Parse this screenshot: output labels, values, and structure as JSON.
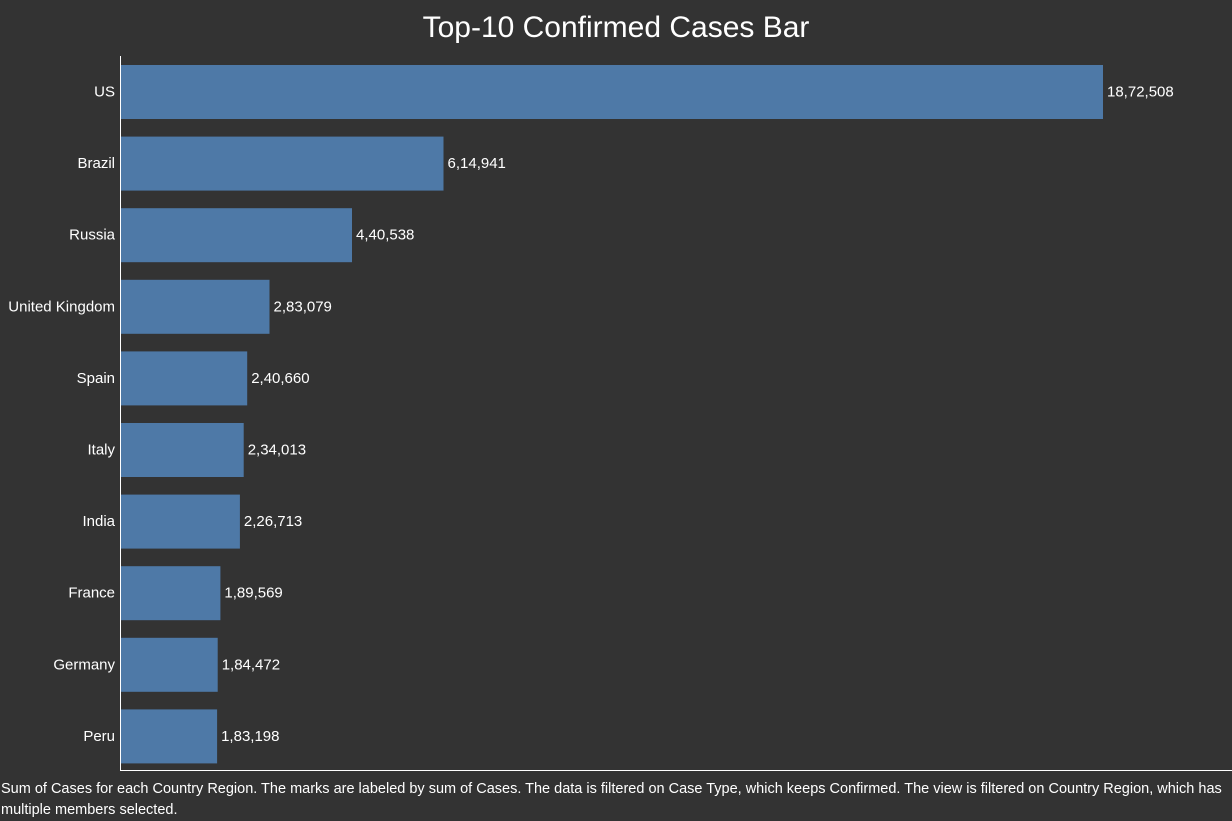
{
  "chart_data": {
    "type": "bar",
    "orientation": "horizontal",
    "title": "Top-10 Confirmed Cases Bar",
    "categories": [
      "US",
      "Brazil",
      "Russia",
      "United Kingdom",
      "Spain",
      "Italy",
      "India",
      "France",
      "Germany",
      "Peru"
    ],
    "values": [
      1872508,
      614941,
      440538,
      283079,
      240660,
      234013,
      226713,
      189569,
      184472,
      183198
    ],
    "value_labels": [
      "18,72,508",
      "6,14,941",
      "4,40,538",
      "2,83,079",
      "2,40,660",
      "2,34,013",
      "2,26,713",
      "1,89,569",
      "1,84,472",
      "1,83,198"
    ],
    "xlabel": "",
    "ylabel": "",
    "grid": false,
    "legend": "none",
    "bar_color": "#4e79a7"
  },
  "caption": "Sum of Cases for each Country Region.  The marks are labeled by sum of Cases. The data is filtered on Case Type, which keeps Confirmed. The view is filtered on Country Region, which has multiple members selected.",
  "colors": {
    "background": "#333333",
    "text": "#ffffff",
    "axis": "#ffffff"
  }
}
